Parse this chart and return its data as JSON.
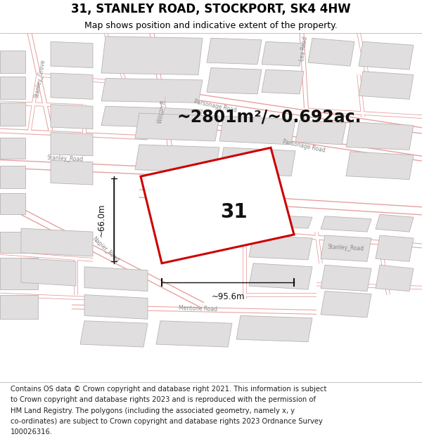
{
  "title": "31, STANLEY ROAD, STOCKPORT, SK4 4HW",
  "subtitle": "Map shows position and indicative extent of the property.",
  "area_text": "~2801m²/~0.692ac.",
  "label_number": "31",
  "dim_width": "~95.6m",
  "dim_height": "~66.0m",
  "footer_lines": [
    "Contains OS data © Crown copyright and database right 2021. This information is subject",
    "to Crown copyright and database rights 2023 and is reproduced with the permission of",
    "HM Land Registry. The polygons (including the associated geometry, namely x, y",
    "co-ordinates) are subject to Crown copyright and database rights 2023 Ordnance Survey",
    "100026316."
  ],
  "map_bg": "#ffffff",
  "road_outline_color": "#e8a0a0",
  "road_fill_color": "#ffffff",
  "building_fill": "#e0dede",
  "building_edge": "#b8b4b4",
  "highlight_color": "#cc0000",
  "highlight_fill": "#ffffff",
  "dim_color": "#111111",
  "text_color": "#222222",
  "road_label_color": "#888888",
  "title_fontsize": 12,
  "subtitle_fontsize": 9,
  "area_fontsize": 17,
  "label_fontsize": 20,
  "dim_fontsize": 8.5,
  "road_label_fontsize": 5.5,
  "footer_fontsize": 7.2
}
